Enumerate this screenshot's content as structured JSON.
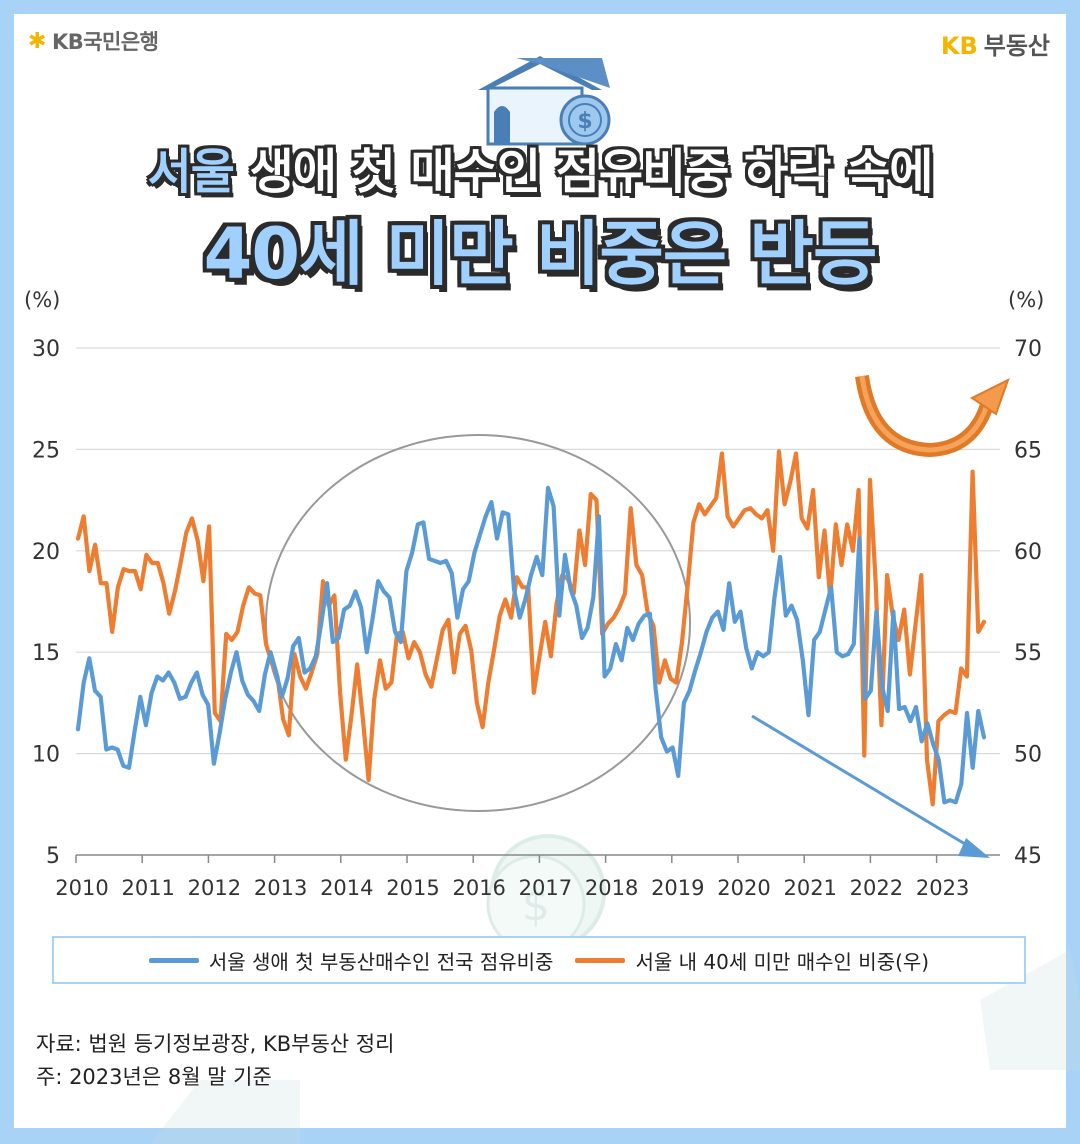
{
  "header": {
    "bank_logo_text": "KB국민은행",
    "realestate_logo_kb": "KB",
    "realestate_logo_text": "부동산"
  },
  "title": {
    "line1_highlight": "서울",
    "line1_rest": "생애 첫 매수인 점유비중 하락 속에",
    "line2": "40세 미만 비중은 반등"
  },
  "chart_data": {
    "type": "line",
    "left_unit": "(%)",
    "right_unit": "(%)",
    "left_ylim": [
      5,
      30
    ],
    "right_ylim": [
      45,
      70
    ],
    "left_ticks": [
      "30",
      "25",
      "20",
      "15",
      "10",
      "5"
    ],
    "right_ticks": [
      "70",
      "65",
      "60",
      "55",
      "50",
      "45"
    ],
    "x_ticks": [
      "2010",
      "2011",
      "2012",
      "2013",
      "2014",
      "2015",
      "2016",
      "2017",
      "2018",
      "2019",
      "2020",
      "2021",
      "2022",
      "2023"
    ],
    "grid": true,
    "colors": {
      "blue": "#5b9bd5",
      "orange": "#ed7d31"
    },
    "series": [
      {
        "name": "서울 생애 첫 부동산매수인 전국 점유비중",
        "axis": "left",
        "color": "#5b9bd5",
        "values": [
          11.2,
          13.5,
          14.7,
          13.1,
          12.8,
          10.2,
          10.3,
          10.2,
          9.4,
          9.3,
          11.1,
          12.8,
          11.4,
          13.0,
          13.8,
          13.6,
          14.0,
          13.5,
          12.7,
          12.8,
          13.5,
          14.0,
          12.9,
          12.4,
          9.5,
          11.0,
          12.7,
          14.0,
          15.0,
          13.6,
          12.9,
          12.6,
          12.1,
          13.9,
          15.0,
          14.0,
          12.8,
          13.7,
          15.3,
          15.7,
          14.0,
          14.2,
          14.8,
          16.5,
          18.4,
          15.5,
          15.7,
          17.1,
          17.3,
          18.0,
          17.2,
          15.0,
          16.6,
          18.5,
          18.0,
          17.7,
          16.0,
          15.5,
          19.0,
          19.9,
          21.3,
          21.4,
          19.6,
          19.5,
          19.4,
          19.5,
          18.9,
          16.7,
          18.1,
          18.5,
          19.9,
          20.8,
          21.7,
          22.4,
          20.6,
          21.9,
          21.8,
          18.1,
          16.7,
          17.6,
          18.8,
          19.7,
          18.8,
          23.1,
          22.2,
          16.8,
          19.8,
          18.1,
          17.3,
          15.7,
          16.2,
          17.7,
          21.7,
          13.8,
          14.2,
          15.4,
          14.6,
          16.2,
          15.6,
          16.4,
          16.8,
          16.9,
          13.2,
          10.8,
          10.1,
          10.3,
          8.9,
          12.5,
          13.1,
          14.1,
          15.0,
          16.0,
          16.7,
          17.0,
          16.1,
          18.4,
          16.5,
          17.0,
          15.2,
          14.2,
          15.0,
          14.8,
          15.0,
          17.7,
          19.7,
          16.8,
          17.3,
          16.6,
          14.6,
          11.9,
          15.6,
          16.0,
          17.1,
          18.2,
          15.0,
          14.8,
          14.9,
          15.4,
          20.6,
          12.7,
          13.1,
          17.0,
          13.3,
          12.1,
          17.0,
          12.2,
          12.3,
          11.6,
          12.3,
          10.6,
          11.5,
          10.5,
          9.7,
          7.6,
          7.7,
          7.6,
          8.5,
          12.0,
          9.3,
          12.1,
          10.8
        ]
      },
      {
        "name": "서울 내 40세 미만 매수인 비중(우)",
        "axis": "right",
        "color": "#ed7d31",
        "values": [
          60.6,
          61.7,
          59.0,
          60.3,
          58.4,
          58.4,
          56.0,
          58.2,
          59.1,
          59.0,
          59.0,
          58.1,
          59.8,
          59.4,
          59.4,
          58.4,
          56.9,
          58.0,
          59.4,
          60.9,
          61.6,
          60.5,
          58.5,
          61.2,
          52.0,
          51.6,
          55.9,
          55.6,
          56.0,
          57.3,
          58.2,
          57.9,
          57.8,
          55.4,
          54.5,
          53.8,
          51.7,
          50.9,
          54.9,
          53.8,
          53.2,
          54.0,
          54.9,
          58.5,
          57.3,
          57.8,
          53.0,
          49.7,
          51.9,
          54.4,
          51.7,
          48.7,
          52.7,
          54.6,
          53.2,
          53.5,
          55.9,
          56.0,
          54.7,
          55.5,
          55.0,
          53.9,
          53.3,
          54.7,
          56.1,
          56.6,
          54.0,
          55.9,
          56.3,
          55.1,
          52.5,
          51.3,
          53.5,
          55.1,
          56.8,
          57.6,
          56.7,
          58.7,
          58.2,
          58.2,
          53.0,
          54.8,
          56.5,
          54.8,
          57.4,
          58.8,
          58.6,
          57.9,
          61.0,
          59.3,
          62.8,
          62.5,
          55.9,
          56.4,
          56.7,
          57.2,
          57.9,
          62.1,
          59.3,
          58.8,
          56.9,
          56.3,
          53.5,
          54.6,
          53.7,
          53.5,
          55.5,
          58.3,
          61.4,
          62.3,
          61.8,
          62.2,
          62.6,
          64.8,
          61.7,
          61.2,
          61.6,
          62.0,
          62.1,
          61.8,
          61.6,
          62.0,
          60.0,
          64.9,
          62.3,
          63.4,
          64.8,
          61.6,
          61.1,
          63.0,
          58.7,
          61.0,
          57.7,
          61.3,
          59.3,
          61.3,
          60.0,
          63.0,
          49.9,
          63.5,
          58.4,
          51.4,
          58.8,
          56.8,
          55.6,
          57.1,
          53.9,
          56.4,
          58.8,
          49.7,
          47.5,
          51.6,
          51.9,
          52.1,
          52.0,
          54.2,
          53.8,
          63.9,
          56.0,
          56.5
        ]
      }
    ]
  },
  "legend": {
    "blue_label": "서울 생애 첫 부동산매수인 전국 점유비중",
    "orange_label": "서울 내 40세 미만 매수인 비중(우)"
  },
  "footnote": {
    "source": "자료: 법원 등기정보광장, KB부동산 정리",
    "note": "주: 2023년은 8월 말 기준"
  }
}
